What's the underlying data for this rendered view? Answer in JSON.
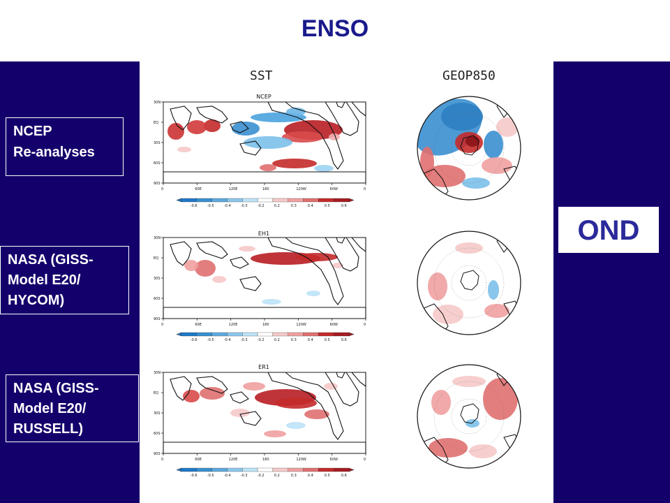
{
  "title": "ENSO",
  "columns": {
    "sst": "SST",
    "geop": "GEOP850"
  },
  "season": "OND",
  "rows": [
    {
      "label_lines": [
        "NCEP",
        "Re-analyses"
      ],
      "panel": "NCEP"
    },
    {
      "label_lines": [
        "NASA (GISS-",
        "Model E20/",
        "HYCOM)"
      ],
      "panel": "EH1"
    },
    {
      "label_lines": [
        "NASA (GISS-",
        "Model E20/",
        "RUSSELL)"
      ],
      "panel": "ER1"
    }
  ],
  "lat_ticks": [
    "30N",
    "EQ",
    "30S",
    "60S",
    "90S"
  ],
  "lon_ticks": [
    "0",
    "60E",
    "120E",
    "180",
    "120W",
    "60W",
    "0"
  ],
  "colorbar_ticks": [
    "-0.6",
    "-0.5",
    "-0.4",
    "-0.3",
    "-0.2",
    "0.2",
    "0.3",
    "0.4",
    "0.5",
    "0.6"
  ],
  "colors": {
    "band": "#14006b",
    "title": "#1a1a8c",
    "warm": "#c0242a",
    "cool": "#2a8fd0"
  }
}
